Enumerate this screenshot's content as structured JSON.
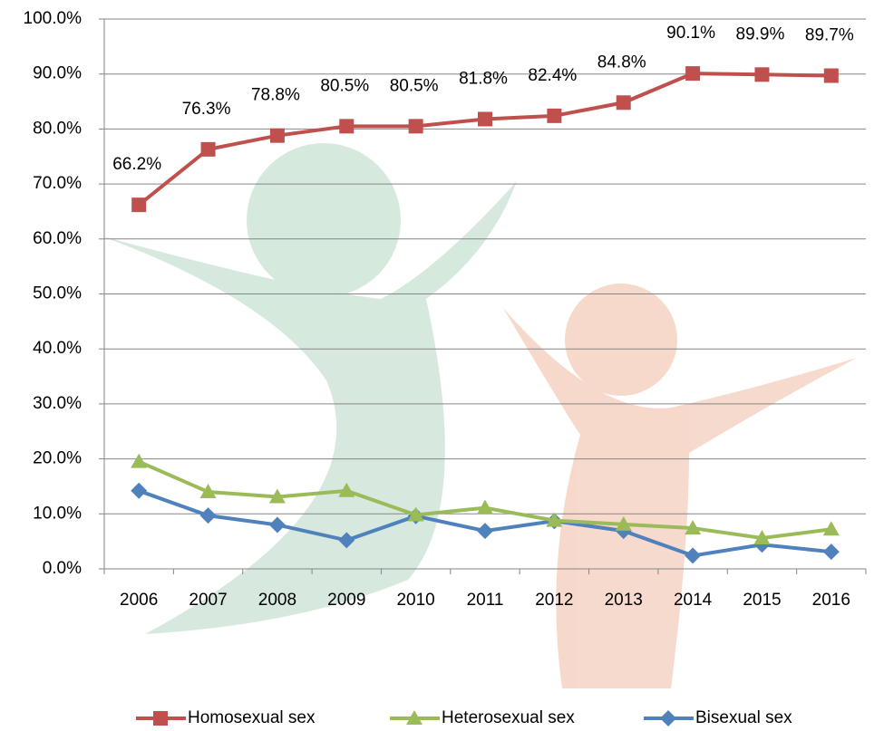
{
  "chart_data": {
    "type": "line",
    "categories": [
      "2006",
      "2007",
      "2008",
      "2009",
      "2010",
      "2011",
      "2012",
      "2013",
      "2014",
      "2015",
      "2016"
    ],
    "series": [
      {
        "name": "Homosexual sex",
        "color": "#c0504d",
        "marker": "square",
        "values": [
          66.2,
          76.3,
          78.8,
          80.5,
          80.5,
          81.8,
          82.4,
          84.8,
          90.1,
          89.9,
          89.7
        ],
        "value_labels": [
          "66.2%",
          "76.3%",
          "78.8%",
          "80.5%",
          "80.5%",
          "81.8%",
          "82.4%",
          "84.8%",
          "90.1%",
          "89.9%",
          "89.7%"
        ]
      },
      {
        "name": "Heterosexual sex",
        "color": "#9bbb59",
        "marker": "triangle",
        "values": [
          19.5,
          14.0,
          13.1,
          14.2,
          9.8,
          11.1,
          8.8,
          8.1,
          7.4,
          5.6,
          7.2
        ]
      },
      {
        "name": "Bisexual sex",
        "color": "#4f81bd",
        "marker": "diamond",
        "values": [
          14.2,
          9.7,
          8.0,
          5.2,
          9.6,
          6.9,
          8.7,
          6.9,
          2.4,
          4.4,
          3.1
        ]
      }
    ],
    "ylim": [
      0,
      100
    ],
    "yticks": [
      {
        "value": 0,
        "label": "0.0%"
      },
      {
        "value": 10,
        "label": "10.0%"
      },
      {
        "value": 20,
        "label": "20.0%"
      },
      {
        "value": 30,
        "label": "30.0%"
      },
      {
        "value": 40,
        "label": "40.0%"
      },
      {
        "value": 50,
        "label": "50.0%"
      },
      {
        "value": 60,
        "label": "60.0%"
      },
      {
        "value": 70,
        "label": "70.0%"
      },
      {
        "value": 80,
        "label": "80.0%"
      },
      {
        "value": 90,
        "label": "90.0%"
      },
      {
        "value": 100,
        "label": "100.0%"
      }
    ],
    "grid": true,
    "legend": "bottom"
  }
}
